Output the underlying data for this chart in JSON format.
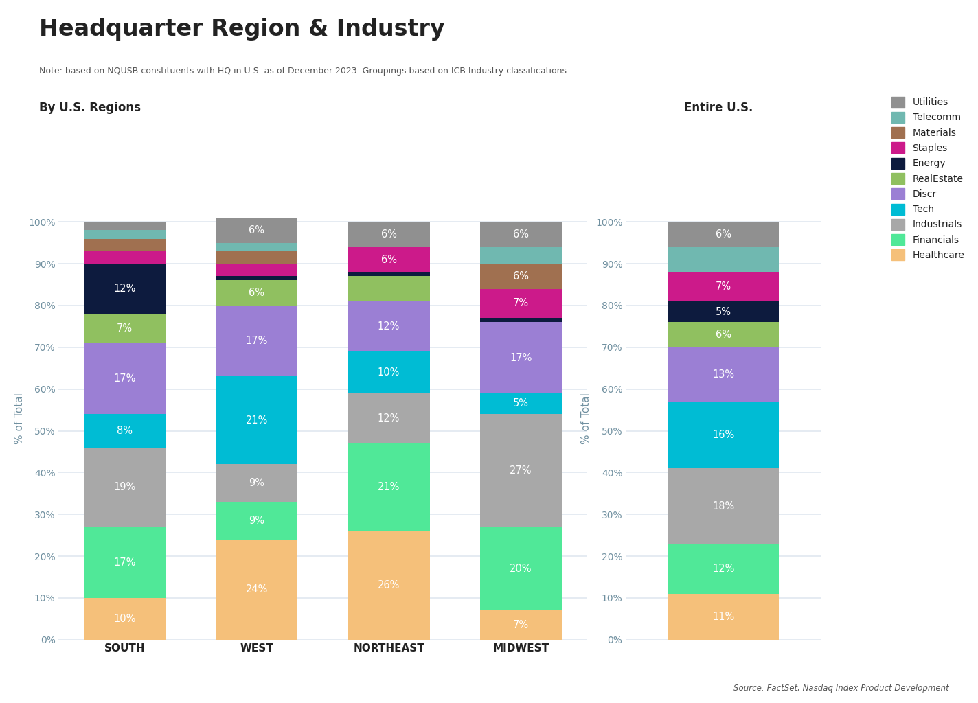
{
  "title": "Headquarter Region & Industry",
  "note": "Note: based on NQUSB constituents with HQ in U.S. as of December 2023. Groupings based on ICB Industry classifications.",
  "source": "Source: FactSet, Nasdaq Index Product Development",
  "left_subtitle": "By U.S. Regions",
  "right_subtitle": "Entire U.S.",
  "regions": [
    "SOUTH",
    "WEST",
    "NORTHEAST",
    "MIDWEST"
  ],
  "categories": [
    "Healthcare",
    "Financials",
    "Industrials",
    "Tech",
    "Discr",
    "RealEstate",
    "Energy",
    "Staples",
    "Materials",
    "Telecomm",
    "Utilities"
  ],
  "colors": {
    "Healthcare": "#f5c07a",
    "Financials": "#50e898",
    "Industrials": "#a8a8a8",
    "Tech": "#00bcd4",
    "Discr": "#9b7fd4",
    "RealEstate": "#90c060",
    "Energy": "#0d1b3e",
    "Staples": "#cc1a8a",
    "Materials": "#a07050",
    "Telecomm": "#70b8b0",
    "Utilities": "#909090"
  },
  "data": {
    "SOUTH": {
      "Healthcare": 10,
      "Financials": 17,
      "Industrials": 19,
      "Tech": 8,
      "Discr": 17,
      "RealEstate": 7,
      "Energy": 12,
      "Staples": 3,
      "Materials": 3,
      "Telecomm": 2,
      "Utilities": 2
    },
    "WEST": {
      "Healthcare": 24,
      "Financials": 9,
      "Industrials": 9,
      "Tech": 21,
      "Discr": 17,
      "RealEstate": 6,
      "Energy": 1,
      "Staples": 3,
      "Materials": 3,
      "Telecomm": 2,
      "Utilities": 6
    },
    "NORTHEAST": {
      "Healthcare": 26,
      "Financials": 21,
      "Industrials": 12,
      "Tech": 10,
      "Discr": 12,
      "RealEstate": 6,
      "Energy": 1,
      "Staples": 6,
      "Materials": 0,
      "Telecomm": 0,
      "Utilities": 6
    },
    "MIDWEST": {
      "Healthcare": 7,
      "Financials": 20,
      "Industrials": 27,
      "Tech": 5,
      "Discr": 17,
      "RealEstate": 0,
      "Energy": 1,
      "Staples": 7,
      "Materials": 6,
      "Telecomm": 4,
      "Utilities": 6
    },
    "Entire U.S.": {
      "Healthcare": 11,
      "Financials": 12,
      "Industrials": 18,
      "Tech": 16,
      "Discr": 13,
      "RealEstate": 6,
      "Energy": 5,
      "Staples": 7,
      "Materials": 0,
      "Telecomm": 6,
      "Utilities": 6
    }
  },
  "show_labels": {
    "SOUTH": {
      "Healthcare": true,
      "Financials": true,
      "Industrials": true,
      "Tech": true,
      "Discr": true,
      "RealEstate": true,
      "Energy": true,
      "Staples": false,
      "Materials": false,
      "Telecomm": false,
      "Utilities": false
    },
    "WEST": {
      "Healthcare": true,
      "Financials": true,
      "Industrials": true,
      "Tech": true,
      "Discr": true,
      "RealEstate": true,
      "Energy": false,
      "Staples": false,
      "Materials": false,
      "Telecomm": false,
      "Utilities": true
    },
    "NORTHEAST": {
      "Healthcare": true,
      "Financials": true,
      "Industrials": true,
      "Tech": true,
      "Discr": true,
      "RealEstate": false,
      "Energy": false,
      "Staples": true,
      "Materials": false,
      "Telecomm": false,
      "Utilities": true
    },
    "MIDWEST": {
      "Healthcare": true,
      "Financials": true,
      "Industrials": true,
      "Tech": true,
      "Discr": true,
      "RealEstate": false,
      "Energy": false,
      "Staples": true,
      "Materials": true,
      "Telecomm": false,
      "Utilities": true
    },
    "Entire U.S.": {
      "Healthcare": true,
      "Financials": true,
      "Industrials": true,
      "Tech": true,
      "Discr": true,
      "RealEstate": true,
      "Energy": true,
      "Staples": true,
      "Materials": false,
      "Telecomm": false,
      "Utilities": true
    }
  },
  "background_color": "#ffffff",
  "grid_color": "#e0e8f0",
  "text_color_dark": "#222222",
  "ylabel_color": "#7090a0"
}
